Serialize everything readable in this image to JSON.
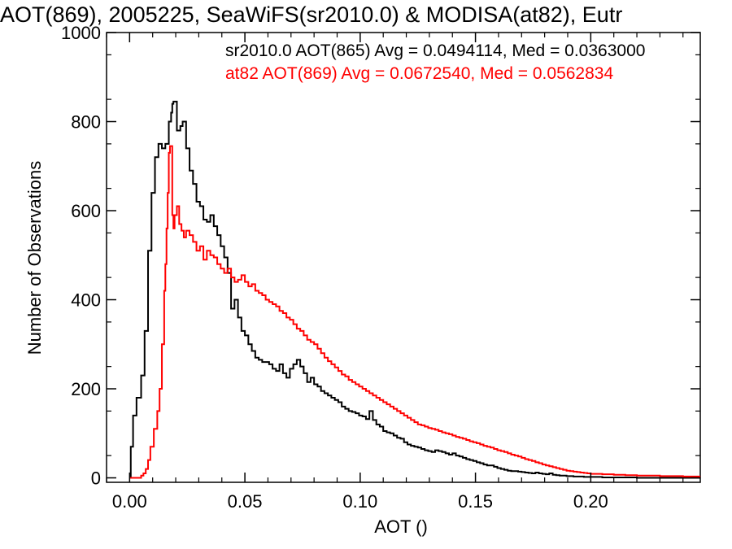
{
  "chart_data": {
    "type": "line",
    "title": "AOT(869), 2005225, SeaWiFS(sr2010.0) & MODISA(at82), Eutr",
    "xlabel": "AOT ()",
    "ylabel": "Number of Observations",
    "xlim": [
      -0.01,
      0.2475
    ],
    "ylim": [
      -10,
      1000
    ],
    "xticks": [
      "0.00",
      "0.05",
      "0.10",
      "0.15",
      "0.20"
    ],
    "xtick_values": [
      0.0,
      0.05,
      0.1,
      0.15,
      0.2
    ],
    "yticks": [
      "0",
      "200",
      "400",
      "600",
      "800",
      "1000"
    ],
    "ytick_values": [
      0,
      200,
      400,
      600,
      800,
      1000
    ],
    "step": "histogram",
    "series": [
      {
        "name": "sr2010.0 AOT(865)",
        "color": "#000000",
        "annotation": "sr2010.0 AOT(865) Avg = 0.0494114, Med = 0.0363000",
        "points": [
          [
            0.0,
            0
          ],
          [
            0.0005,
            70
          ],
          [
            0.0015,
            140
          ],
          [
            0.003,
            180
          ],
          [
            0.005,
            230
          ],
          [
            0.0065,
            330
          ],
          [
            0.008,
            510
          ],
          [
            0.0095,
            640
          ],
          [
            0.011,
            720
          ],
          [
            0.0125,
            750
          ],
          [
            0.014,
            740
          ],
          [
            0.0155,
            750
          ],
          [
            0.017,
            800
          ],
          [
            0.018,
            820
          ],
          [
            0.0185,
            840
          ],
          [
            0.019,
            845
          ],
          [
            0.0205,
            780
          ],
          [
            0.022,
            790
          ],
          [
            0.023,
            800
          ],
          [
            0.0245,
            740
          ],
          [
            0.026,
            690
          ],
          [
            0.0275,
            660
          ],
          [
            0.029,
            620
          ],
          [
            0.0305,
            610
          ],
          [
            0.032,
            580
          ],
          [
            0.0335,
            575
          ],
          [
            0.035,
            590
          ],
          [
            0.0365,
            565
          ],
          [
            0.038,
            545
          ],
          [
            0.0395,
            520
          ],
          [
            0.041,
            495
          ],
          [
            0.0425,
            460
          ],
          [
            0.044,
            380
          ],
          [
            0.0455,
            400
          ],
          [
            0.047,
            360
          ],
          [
            0.0485,
            330
          ],
          [
            0.05,
            320
          ],
          [
            0.0515,
            300
          ],
          [
            0.053,
            285
          ],
          [
            0.0545,
            270
          ],
          [
            0.056,
            265
          ],
          [
            0.0575,
            260
          ],
          [
            0.059,
            260
          ],
          [
            0.0605,
            255
          ],
          [
            0.062,
            245
          ],
          [
            0.0635,
            240
          ],
          [
            0.065,
            255
          ],
          [
            0.0665,
            235
          ],
          [
            0.068,
            225
          ],
          [
            0.0695,
            245
          ],
          [
            0.071,
            255
          ],
          [
            0.0725,
            265
          ],
          [
            0.074,
            250
          ],
          [
            0.0755,
            235
          ],
          [
            0.077,
            215
          ],
          [
            0.0785,
            225
          ],
          [
            0.08,
            210
          ],
          [
            0.0815,
            205
          ],
          [
            0.083,
            195
          ],
          [
            0.0845,
            190
          ],
          [
            0.086,
            185
          ],
          [
            0.0875,
            180
          ],
          [
            0.089,
            175
          ],
          [
            0.0905,
            170
          ],
          [
            0.092,
            160
          ],
          [
            0.0935,
            155
          ],
          [
            0.095,
            150
          ],
          [
            0.0965,
            148
          ],
          [
            0.098,
            145
          ],
          [
            0.0995,
            140
          ],
          [
            0.101,
            138
          ],
          [
            0.1025,
            132
          ],
          [
            0.104,
            150
          ],
          [
            0.1055,
            130
          ],
          [
            0.107,
            120
          ],
          [
            0.1085,
            115
          ],
          [
            0.11,
            105
          ],
          [
            0.1115,
            102
          ],
          [
            0.113,
            100
          ],
          [
            0.1145,
            95
          ],
          [
            0.116,
            90
          ],
          [
            0.1175,
            88
          ],
          [
            0.119,
            80
          ],
          [
            0.1205,
            75
          ],
          [
            0.122,
            72
          ],
          [
            0.1235,
            70
          ],
          [
            0.125,
            68
          ],
          [
            0.1265,
            65
          ],
          [
            0.128,
            62
          ],
          [
            0.1295,
            60
          ],
          [
            0.131,
            58
          ],
          [
            0.1325,
            62
          ],
          [
            0.134,
            60
          ],
          [
            0.1355,
            58
          ],
          [
            0.137,
            55
          ],
          [
            0.1385,
            52
          ],
          [
            0.14,
            55
          ],
          [
            0.1415,
            50
          ],
          [
            0.143,
            48
          ],
          [
            0.1445,
            45
          ],
          [
            0.146,
            42
          ],
          [
            0.1475,
            40
          ],
          [
            0.149,
            38
          ],
          [
            0.1505,
            35
          ],
          [
            0.152,
            33
          ],
          [
            0.1535,
            30
          ],
          [
            0.155,
            28
          ],
          [
            0.1565,
            28
          ],
          [
            0.158,
            25
          ],
          [
            0.1595,
            22
          ],
          [
            0.161,
            20
          ],
          [
            0.1625,
            18
          ],
          [
            0.164,
            16
          ],
          [
            0.1655,
            15
          ],
          [
            0.167,
            15
          ],
          [
            0.1685,
            14
          ],
          [
            0.17,
            13
          ],
          [
            0.1715,
            12
          ],
          [
            0.173,
            11
          ],
          [
            0.1745,
            10
          ],
          [
            0.176,
            12
          ],
          [
            0.1775,
            10
          ],
          [
            0.179,
            9
          ],
          [
            0.1805,
            8
          ],
          [
            0.182,
            10
          ],
          [
            0.1835,
            7
          ],
          [
            0.185,
            6
          ],
          [
            0.1865,
            5
          ],
          [
            0.188,
            5
          ],
          [
            0.1895,
            4
          ],
          [
            0.191,
            4
          ],
          [
            0.1925,
            3
          ],
          [
            0.194,
            3
          ],
          [
            0.1955,
            3
          ],
          [
            0.197,
            2
          ],
          [
            0.1985,
            2
          ],
          [
            0.2,
            2
          ],
          [
            0.205,
            1
          ],
          [
            0.21,
            1
          ],
          [
            0.22,
            0
          ],
          [
            0.23,
            0
          ],
          [
            0.24,
            0
          ],
          [
            0.2475,
            0
          ]
        ]
      },
      {
        "name": "at82 AOT(869)",
        "color": "#ff0000",
        "annotation": "at82 AOT(869) Avg = 0.0672540, Med = 0.0562834",
        "points": [
          [
            0.0,
            0
          ],
          [
            0.0035,
            0
          ],
          [
            0.005,
            5
          ],
          [
            0.006,
            10
          ],
          [
            0.007,
            20
          ],
          [
            0.008,
            40
          ],
          [
            0.009,
            70
          ],
          [
            0.0105,
            110
          ],
          [
            0.012,
            150
          ],
          [
            0.013,
            200
          ],
          [
            0.014,
            300
          ],
          [
            0.015,
            420
          ],
          [
            0.0155,
            480
          ],
          [
            0.016,
            560
          ],
          [
            0.0165,
            640
          ],
          [
            0.017,
            730
          ],
          [
            0.0175,
            745
          ],
          [
            0.0185,
            590
          ],
          [
            0.019,
            560
          ],
          [
            0.0195,
            590
          ],
          [
            0.0205,
            610
          ],
          [
            0.0215,
            570
          ],
          [
            0.0225,
            555
          ],
          [
            0.0235,
            540
          ],
          [
            0.0245,
            555
          ],
          [
            0.026,
            545
          ],
          [
            0.0275,
            530
          ],
          [
            0.029,
            510
          ],
          [
            0.0305,
            520
          ],
          [
            0.032,
            490
          ],
          [
            0.0335,
            510
          ],
          [
            0.035,
            500
          ],
          [
            0.0365,
            495
          ],
          [
            0.038,
            480
          ],
          [
            0.0395,
            470
          ],
          [
            0.041,
            460
          ],
          [
            0.0425,
            470
          ],
          [
            0.044,
            450
          ],
          [
            0.0455,
            440
          ],
          [
            0.047,
            445
          ],
          [
            0.0485,
            455
          ],
          [
            0.05,
            440
          ],
          [
            0.0515,
            430
          ],
          [
            0.053,
            435
          ],
          [
            0.0545,
            420
          ],
          [
            0.056,
            415
          ],
          [
            0.0575,
            410
          ],
          [
            0.059,
            400
          ],
          [
            0.0605,
            395
          ],
          [
            0.062,
            390
          ],
          [
            0.0635,
            385
          ],
          [
            0.065,
            375
          ],
          [
            0.0665,
            370
          ],
          [
            0.068,
            360
          ],
          [
            0.0695,
            355
          ],
          [
            0.071,
            345
          ],
          [
            0.0725,
            335
          ],
          [
            0.074,
            330
          ],
          [
            0.0755,
            320
          ],
          [
            0.077,
            310
          ],
          [
            0.0785,
            305
          ],
          [
            0.08,
            300
          ],
          [
            0.0815,
            290
          ],
          [
            0.083,
            280
          ],
          [
            0.0845,
            270
          ],
          [
            0.086,
            262
          ],
          [
            0.0875,
            255
          ],
          [
            0.089,
            248
          ],
          [
            0.0905,
            240
          ],
          [
            0.092,
            232
          ],
          [
            0.0935,
            228
          ],
          [
            0.095,
            220
          ],
          [
            0.0965,
            215
          ],
          [
            0.098,
            210
          ],
          [
            0.0995,
            205
          ],
          [
            0.101,
            200
          ],
          [
            0.1025,
            195
          ],
          [
            0.104,
            190
          ],
          [
            0.1055,
            185
          ],
          [
            0.107,
            180
          ],
          [
            0.1085,
            175
          ],
          [
            0.11,
            170
          ],
          [
            0.1115,
            165
          ],
          [
            0.113,
            160
          ],
          [
            0.1145,
            155
          ],
          [
            0.116,
            150
          ],
          [
            0.1175,
            145
          ],
          [
            0.119,
            140
          ],
          [
            0.1205,
            135
          ],
          [
            0.122,
            130
          ],
          [
            0.1235,
            125
          ],
          [
            0.125,
            120
          ],
          [
            0.1265,
            118
          ],
          [
            0.128,
            115
          ],
          [
            0.1295,
            112
          ],
          [
            0.131,
            110
          ],
          [
            0.1325,
            108
          ],
          [
            0.134,
            105
          ],
          [
            0.1355,
            102
          ],
          [
            0.137,
            100
          ],
          [
            0.1385,
            98
          ],
          [
            0.14,
            95
          ],
          [
            0.1415,
            92
          ],
          [
            0.143,
            90
          ],
          [
            0.1445,
            88
          ],
          [
            0.146,
            85
          ],
          [
            0.1475,
            82
          ],
          [
            0.149,
            80
          ],
          [
            0.1505,
            78
          ],
          [
            0.152,
            75
          ],
          [
            0.1535,
            72
          ],
          [
            0.155,
            70
          ],
          [
            0.1565,
            68
          ],
          [
            0.158,
            65
          ],
          [
            0.1595,
            62
          ],
          [
            0.161,
            60
          ],
          [
            0.1625,
            58
          ],
          [
            0.164,
            55
          ],
          [
            0.1655,
            52
          ],
          [
            0.167,
            50
          ],
          [
            0.1685,
            48
          ],
          [
            0.17,
            45
          ],
          [
            0.1715,
            42
          ],
          [
            0.173,
            40
          ],
          [
            0.1745,
            38
          ],
          [
            0.176,
            35
          ],
          [
            0.1775,
            33
          ],
          [
            0.179,
            30
          ],
          [
            0.1805,
            28
          ],
          [
            0.182,
            26
          ],
          [
            0.1835,
            24
          ],
          [
            0.185,
            22
          ],
          [
            0.1865,
            20
          ],
          [
            0.188,
            18
          ],
          [
            0.1895,
            16
          ],
          [
            0.191,
            15
          ],
          [
            0.1925,
            14
          ],
          [
            0.194,
            13
          ],
          [
            0.1955,
            12
          ],
          [
            0.197,
            11
          ],
          [
            0.1985,
            10
          ],
          [
            0.2,
            9
          ],
          [
            0.205,
            8
          ],
          [
            0.21,
            7
          ],
          [
            0.215,
            6
          ],
          [
            0.22,
            5
          ],
          [
            0.225,
            5
          ],
          [
            0.23,
            4
          ],
          [
            0.235,
            4
          ],
          [
            0.24,
            3
          ],
          [
            0.2475,
            3
          ]
        ]
      }
    ],
    "grid": false
  }
}
